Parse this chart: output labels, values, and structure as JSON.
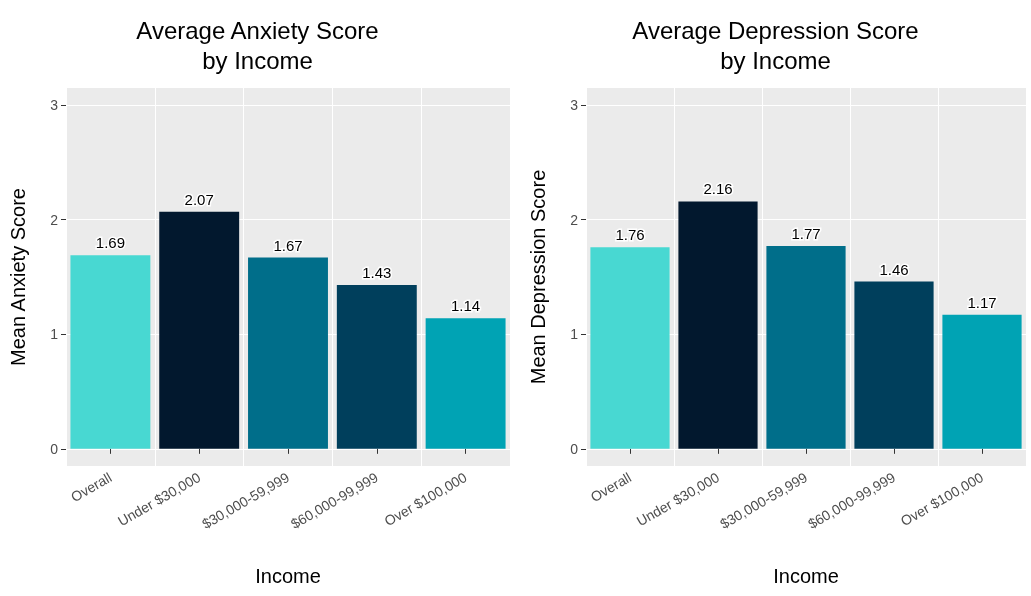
{
  "chart_data": [
    {
      "type": "bar",
      "title": "Average Anxiety Score\nby Income",
      "xlabel": "Income",
      "ylabel": "Mean Anxiety Score",
      "categories": [
        "Overall",
        "Under $30,000",
        "$30,000-59,999",
        "$60,000-99,999",
        "Over $100,000"
      ],
      "values": [
        1.69,
        2.07,
        1.67,
        1.43,
        1.14
      ],
      "colors": [
        "#48d8d2",
        "#02182e",
        "#006e8a",
        "#003f5c",
        "#00a3b4"
      ],
      "ylim": [
        -0.15,
        3.15
      ],
      "yticks": [
        0,
        1,
        2,
        3
      ],
      "grid": true,
      "data_labels": true
    },
    {
      "type": "bar",
      "title": "Average Depression Score\nby Income",
      "xlabel": "Income",
      "ylabel": "Mean Depression Score",
      "categories": [
        "Overall",
        "Under $30,000",
        "$30,000-59,999",
        "$60,000-99,999",
        "Over $100,000"
      ],
      "values": [
        1.76,
        2.16,
        1.77,
        1.46,
        1.17
      ],
      "colors": [
        "#48d8d2",
        "#02182e",
        "#006e8a",
        "#003f5c",
        "#00a3b4"
      ],
      "ylim": [
        -0.15,
        3.15
      ],
      "yticks": [
        0,
        1,
        2,
        3
      ],
      "grid": true,
      "data_labels": true
    }
  ]
}
